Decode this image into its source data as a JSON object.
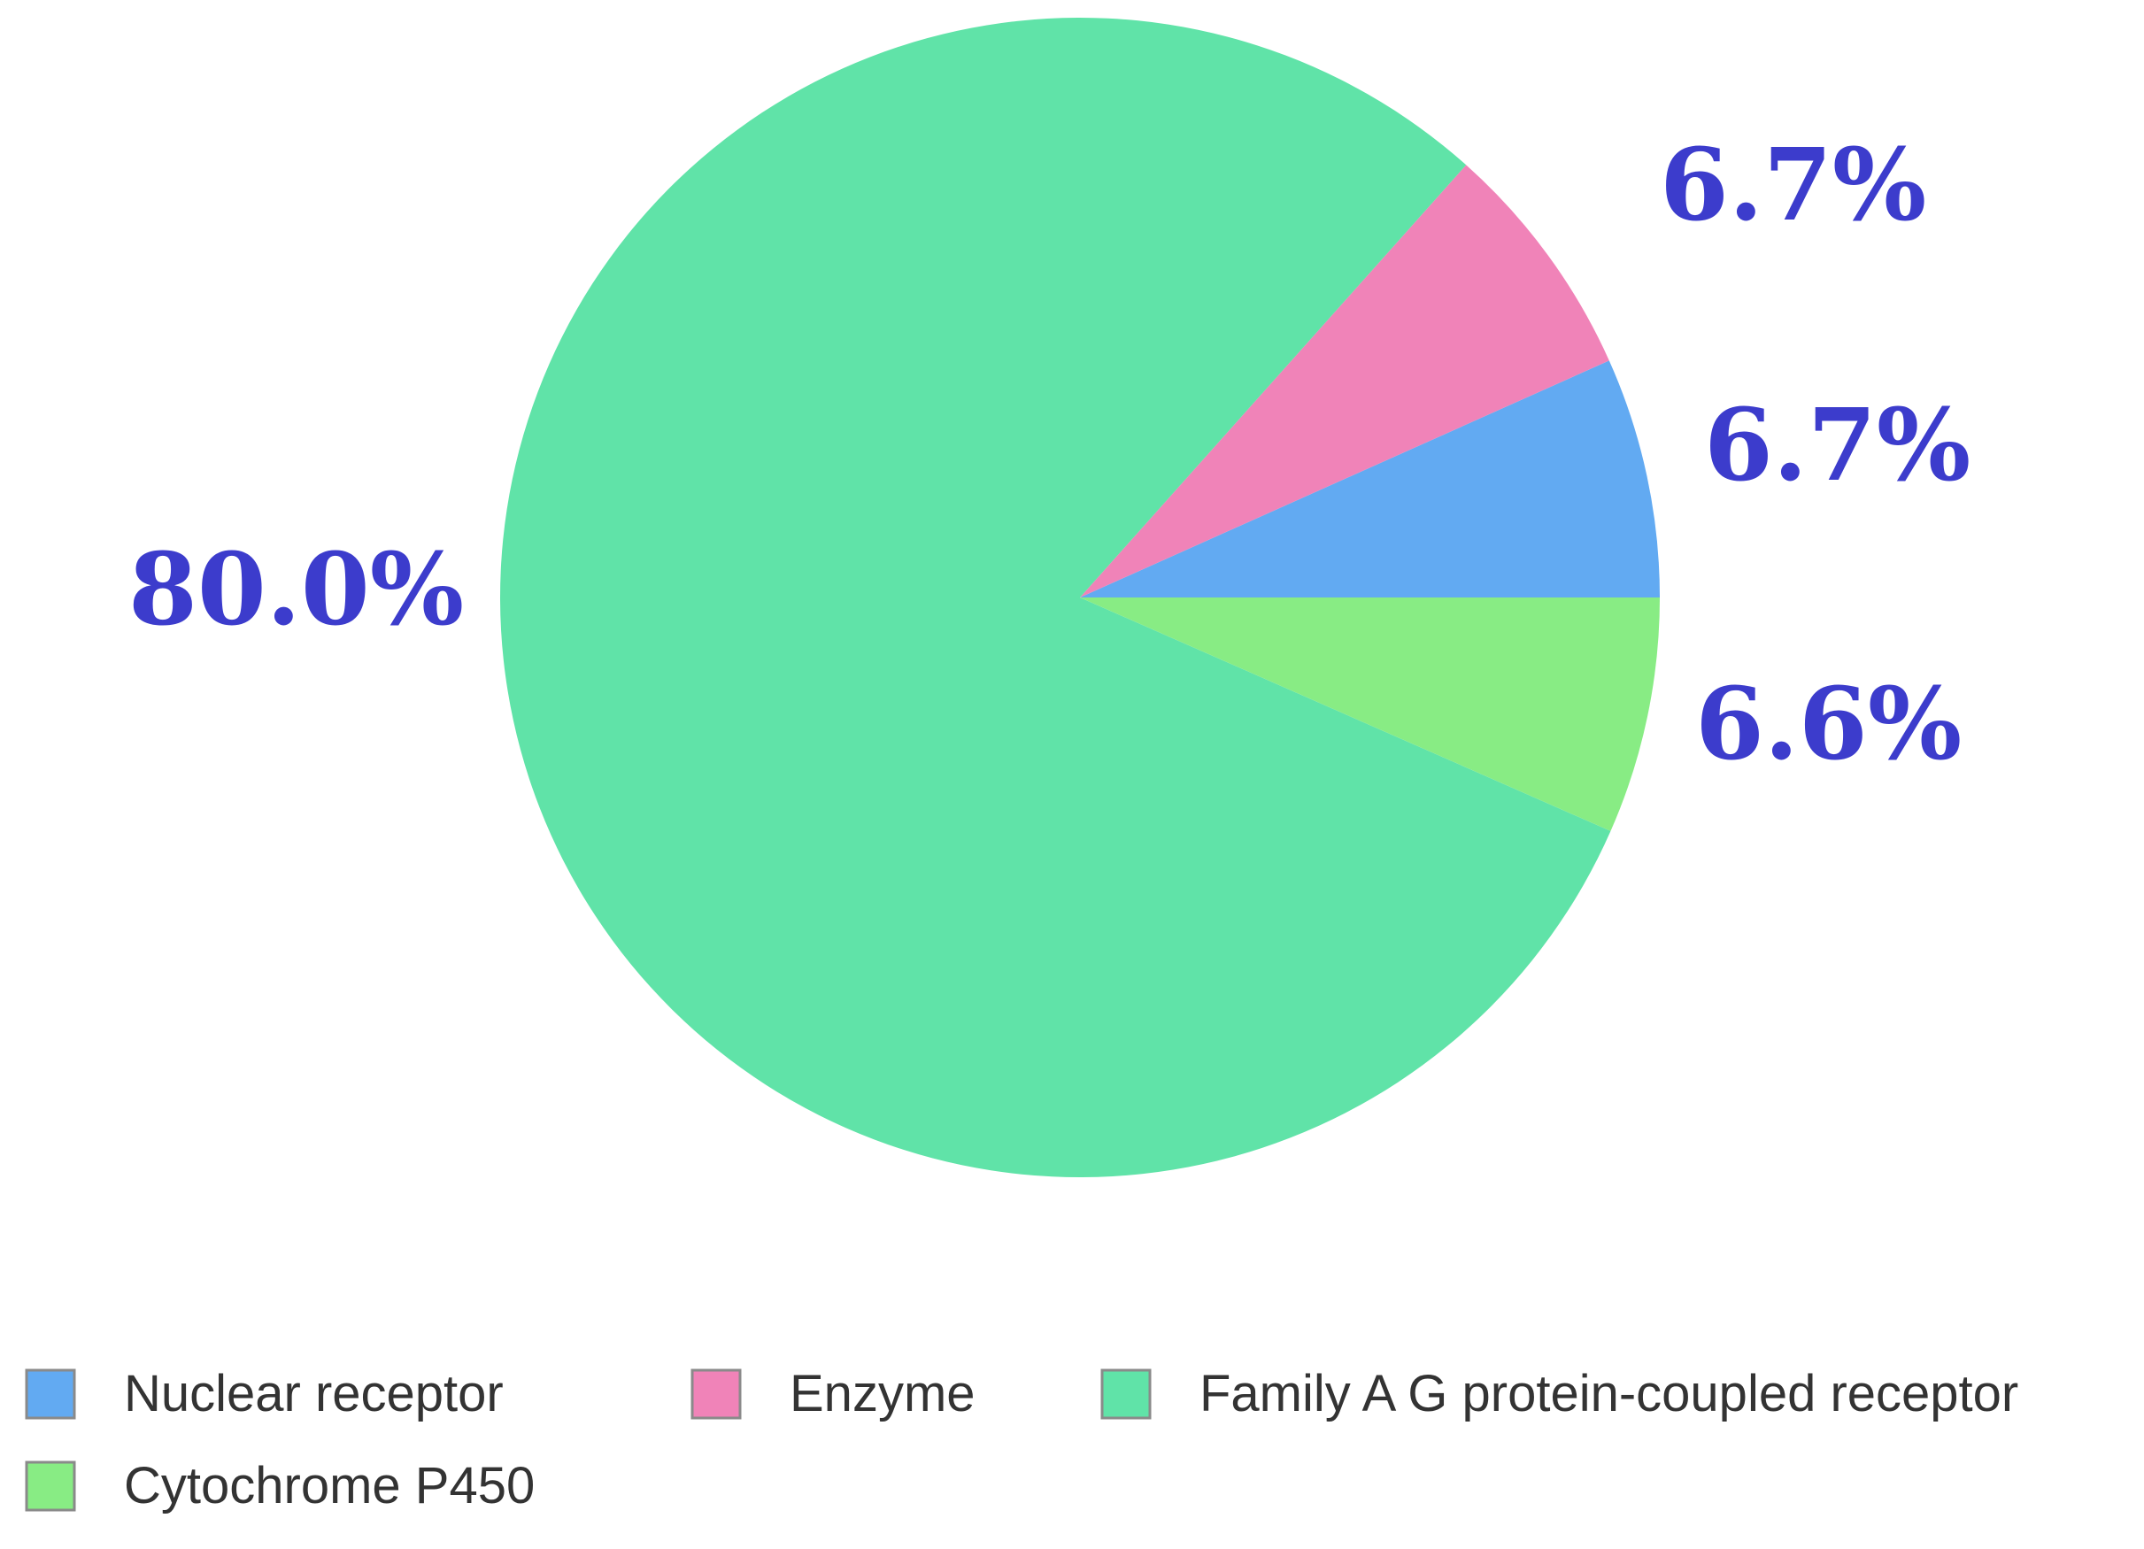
{
  "chart_data": {
    "type": "pie",
    "start_angle_deg": 0,
    "direction": "counterclockwise",
    "slices": [
      {
        "name": "Nuclear receptor",
        "value": 6.7,
        "label": "6.7%",
        "color": "#62aaf2"
      },
      {
        "name": "Enzyme",
        "value": 6.7,
        "label": "6.7%",
        "color": "#f083b8"
      },
      {
        "name": "Family A G protein-coupled receptor",
        "value": 80.0,
        "label": "80.0%",
        "color": "#60e3a8"
      },
      {
        "name": "Cytochrome P450",
        "value": 6.6,
        "label": "6.6%",
        "color": "#88ec84"
      }
    ],
    "label_color": "#3c3ccc",
    "legend_position": "bottom"
  }
}
